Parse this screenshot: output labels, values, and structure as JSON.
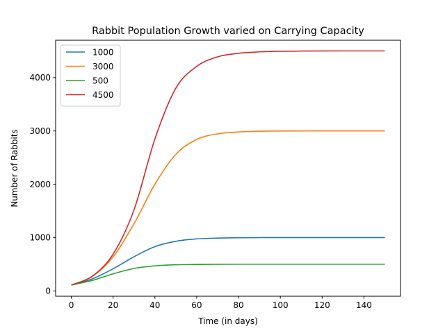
{
  "chart_data": {
    "type": "line",
    "title": "Rabbit Population Growth varied on Carrying Capacity",
    "xlabel": "Time (in days)",
    "ylabel": "Number of Rabbits",
    "xlim": [
      -7.5,
      157.5
    ],
    "ylim": [
      -100,
      4700
    ],
    "xticks": [
      0,
      20,
      40,
      60,
      80,
      100,
      120,
      140
    ],
    "yticks": [
      0,
      1000,
      2000,
      3000,
      4000
    ],
    "grid": false,
    "legend": "upper-left",
    "x": [
      0,
      10,
      20,
      30,
      40,
      50,
      60,
      70,
      80,
      90,
      100,
      110,
      120,
      130,
      140,
      150
    ],
    "series": [
      {
        "name": "1000",
        "color": "#1f77b4",
        "values": [
          110,
          225,
          415,
          640,
          830,
          930,
          975,
          990,
          997,
          999,
          1000,
          1000,
          1000,
          1000,
          1000,
          1000
        ]
      },
      {
        "name": "3000",
        "color": "#ff7f0e",
        "values": [
          110,
          270,
          640,
          1260,
          2000,
          2560,
          2840,
          2945,
          2980,
          2993,
          2998,
          2999,
          3000,
          3000,
          3000,
          3000
        ]
      },
      {
        "name": "500",
        "color": "#2ca02c",
        "values": [
          110,
          195,
          320,
          420,
          470,
          490,
          496,
          499,
          500,
          500,
          500,
          500,
          500,
          500,
          500,
          500
        ]
      },
      {
        "name": "4500",
        "color": "#d62728",
        "values": [
          110,
          275,
          690,
          1520,
          2850,
          3800,
          4210,
          4390,
          4455,
          4482,
          4493,
          4497,
          4499,
          4500,
          4500,
          4500
        ]
      }
    ]
  }
}
